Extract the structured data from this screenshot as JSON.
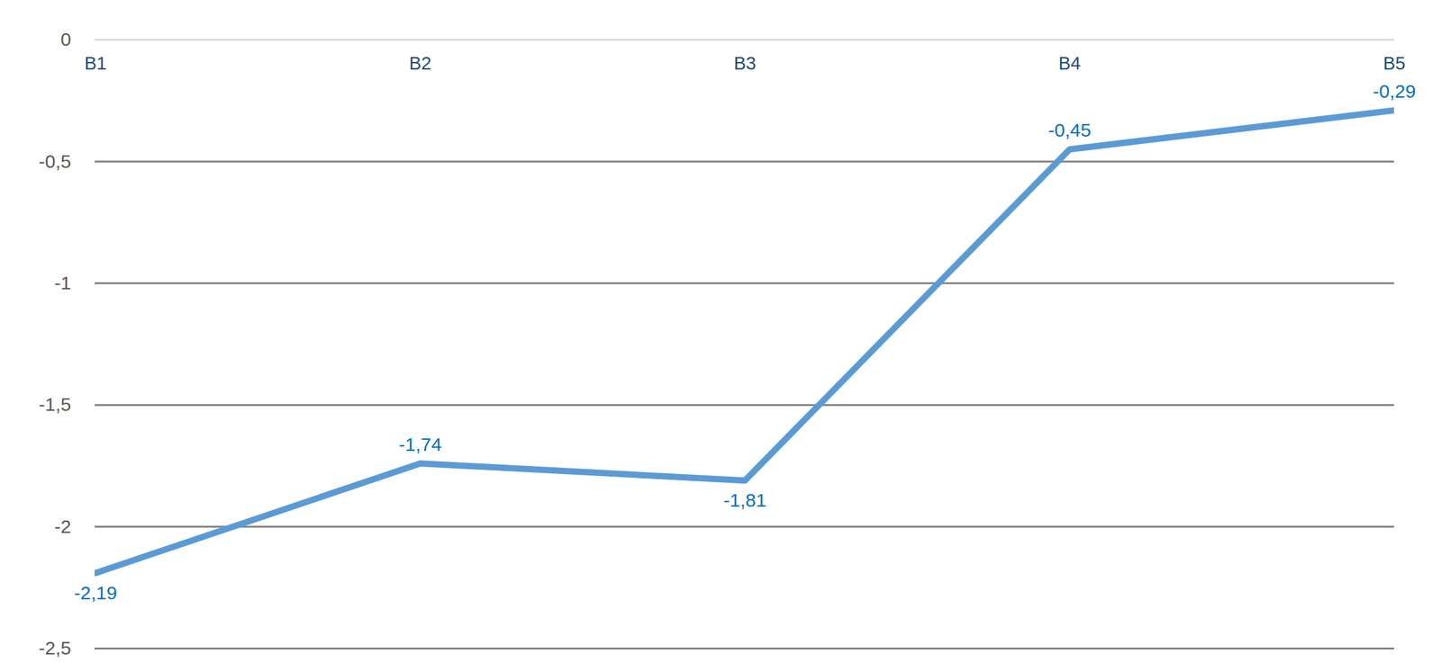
{
  "chart_data": {
    "type": "line",
    "categories": [
      "B1",
      "B2",
      "B3",
      "B4",
      "B5"
    ],
    "values": [
      -2.19,
      -1.74,
      -1.81,
      -0.45,
      -0.29
    ],
    "value_labels": [
      "-2,19",
      "-1,74",
      "-1,81",
      "-0,45",
      "-0,29"
    ],
    "color": "#5b9bd5",
    "ylim": [
      -2.5,
      0
    ],
    "yticks": [
      {
        "value": -2.5,
        "label": "-2,5"
      },
      {
        "value": -2,
        "label": "-2"
      },
      {
        "value": -1.5,
        "label": "-1,5"
      },
      {
        "value": -1,
        "label": "-1"
      },
      {
        "value": -0.5,
        "label": "-0,5"
      },
      0
    ],
    "grid": true,
    "data_labels": true
  }
}
